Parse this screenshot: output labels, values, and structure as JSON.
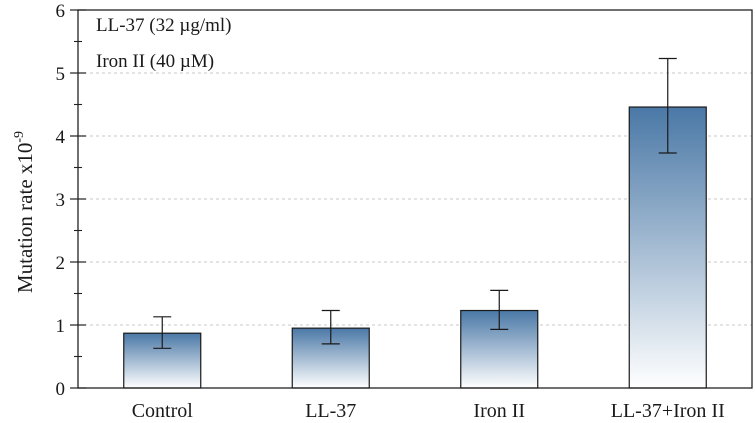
{
  "chart_data": {
    "type": "bar",
    "categories": [
      "Control",
      "LL-37",
      "Iron II",
      "LL-37+Iron II"
    ],
    "values": [
      0.87,
      0.95,
      1.23,
      4.46
    ],
    "error_low": [
      0.63,
      0.7,
      0.93,
      3.73
    ],
    "error_high": [
      1.13,
      1.23,
      1.55,
      5.23
    ],
    "ylabel_main": "Mutation rate x10",
    "ylabel_exp": "-9",
    "ylim": [
      0,
      6
    ],
    "yticks": [
      0,
      1,
      2,
      3,
      4,
      5,
      6
    ],
    "ytick_labels": [
      "0",
      "1",
      "2",
      "3",
      "4",
      "5",
      "6"
    ],
    "minor_ticks": true,
    "grid": "horizontal dashed",
    "annotations": [
      "LL-37 (32 µg/ml)",
      "Iron II (40 µM)"
    ],
    "bar_gradient": [
      "#4a78a6",
      "#ffffff"
    ]
  }
}
